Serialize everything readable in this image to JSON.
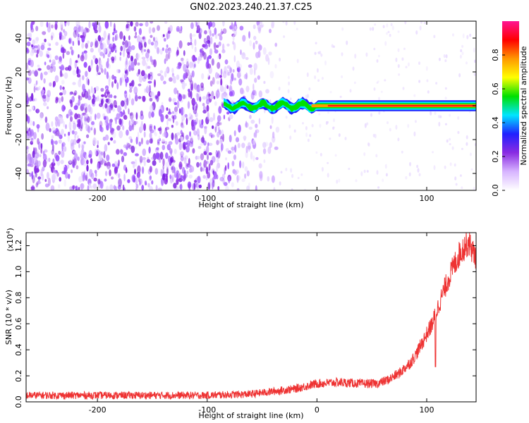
{
  "title": "GN02.2023.240.21.37.C25",
  "chart_data": [
    {
      "type": "heatmap",
      "name": "spectrogram",
      "xlabel": "Height of straight line (km)",
      "ylabel": "Frequency (Hz)",
      "xlim": [
        -265,
        145
      ],
      "ylim": [
        -50,
        50
      ],
      "xticks": [
        -200,
        -100,
        0,
        100
      ],
      "yticks": [
        -40,
        -20,
        0,
        20,
        40
      ],
      "xtick_labels": [
        "-200",
        "-100",
        "0",
        "100"
      ],
      "ytick_labels": [
        "-40",
        "-20",
        "0",
        "20",
        "40"
      ],
      "colorbar": {
        "label": "Normalized spectral amplitude",
        "range": [
          0,
          1
        ],
        "ticks": [
          0.0,
          0.2,
          0.4,
          0.6,
          0.8
        ],
        "tick_labels": [
          "0.0",
          "0.2",
          "0.4",
          "0.6",
          "0.8"
        ],
        "colors": [
          "#ffffff",
          "#d7b4ff",
          "#8a2be2",
          "#2020ff",
          "#00e5ff",
          "#00e000",
          "#ffff00",
          "#ff9900",
          "#ff0000",
          "#ff1493"
        ]
      },
      "noise_extent_x": [
        -265,
        -35
      ],
      "signal_start_x": -85,
      "carrier_frequency": 0,
      "carrier_max_amplitude": 0.95
    },
    {
      "type": "line",
      "name": "snr",
      "xlabel": "Height of straight line (km)",
      "ylabel": "SNR (10 * v/v)",
      "y_multiplier": "(x10",
      "y_multiplier_exp": "4",
      "y_multiplier_close": ")",
      "xlim": [
        -265,
        145
      ],
      "ylim": [
        0,
        1.3
      ],
      "xticks": [
        -200,
        -100,
        0,
        100
      ],
      "yticks": [
        0.0,
        0.2,
        0.4,
        0.6,
        0.8,
        1.0,
        1.2
      ],
      "xtick_labels": [
        "-200",
        "-100",
        "0",
        "100"
      ],
      "ytick_labels": [
        "0.0",
        "0.2",
        "0.4",
        "0.6",
        "0.8",
        "1.0",
        "1.2"
      ],
      "color": "#ee3333",
      "series": [
        {
          "x": [
            -265,
            -240,
            -200,
            -150,
            -100,
            -60,
            -40,
            -20,
            -10,
            0,
            20,
            40,
            55,
            65,
            75,
            85,
            90,
            95,
            100,
            105,
            110,
            115,
            120,
            125,
            130,
            135,
            138,
            140,
            142,
            145
          ],
          "values": [
            0.05,
            0.05,
            0.05,
            0.05,
            0.05,
            0.06,
            0.08,
            0.1,
            0.12,
            0.14,
            0.15,
            0.14,
            0.14,
            0.17,
            0.22,
            0.3,
            0.36,
            0.44,
            0.52,
            0.6,
            0.72,
            0.84,
            0.95,
            1.05,
            1.14,
            1.2,
            1.23,
            1.2,
            1.15,
            1.12
          ]
        }
      ]
    }
  ]
}
